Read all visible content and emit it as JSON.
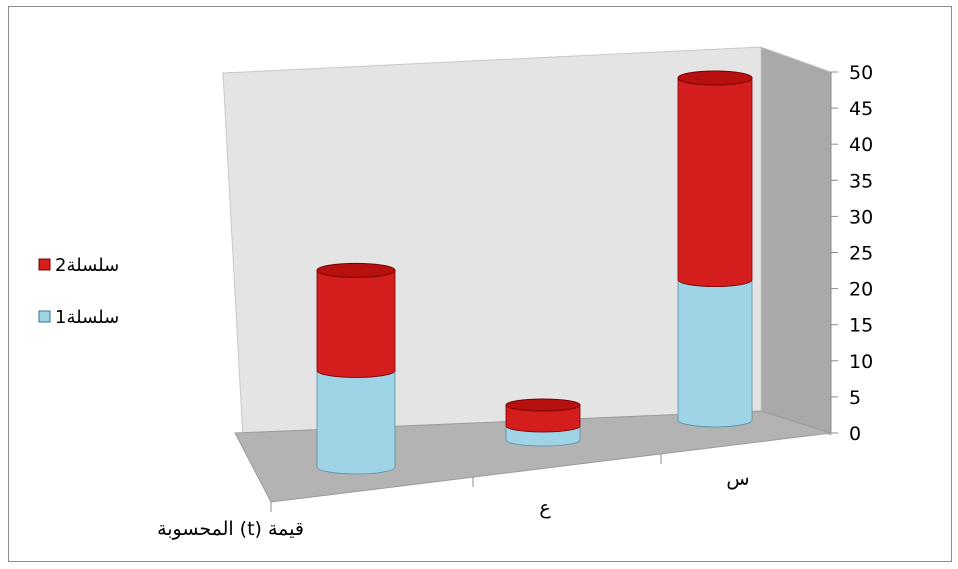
{
  "colors": {
    "series1_side": "#9fd3e6",
    "series1_top": "#c6e6f2",
    "series2_side": "#d41d1d",
    "series2_top": "#b80f0f",
    "wall": "#e4e4e4",
    "side_wall": "#a9a9a9",
    "floor": "#b3b3b3"
  },
  "chart_data": {
    "type": "bar",
    "variant": "stacked-3d-cylinder",
    "categories": [
      "قيمة (t) المحسوبة",
      "ع",
      "س"
    ],
    "series": [
      {
        "name": "سلسلة1",
        "values": [
          13.5,
          2.0,
          19.5
        ]
      },
      {
        "name": "سلسلة2",
        "values": [
          14.0,
          3.0,
          28.0
        ]
      }
    ],
    "ylim": [
      0,
      50
    ],
    "y_ticks": [
      "0",
      "5",
      "10",
      "15",
      "20",
      "25",
      "30",
      "35",
      "40",
      "45",
      "50"
    ],
    "legend_position": "left",
    "title": "",
    "xlabel": "",
    "ylabel": ""
  }
}
